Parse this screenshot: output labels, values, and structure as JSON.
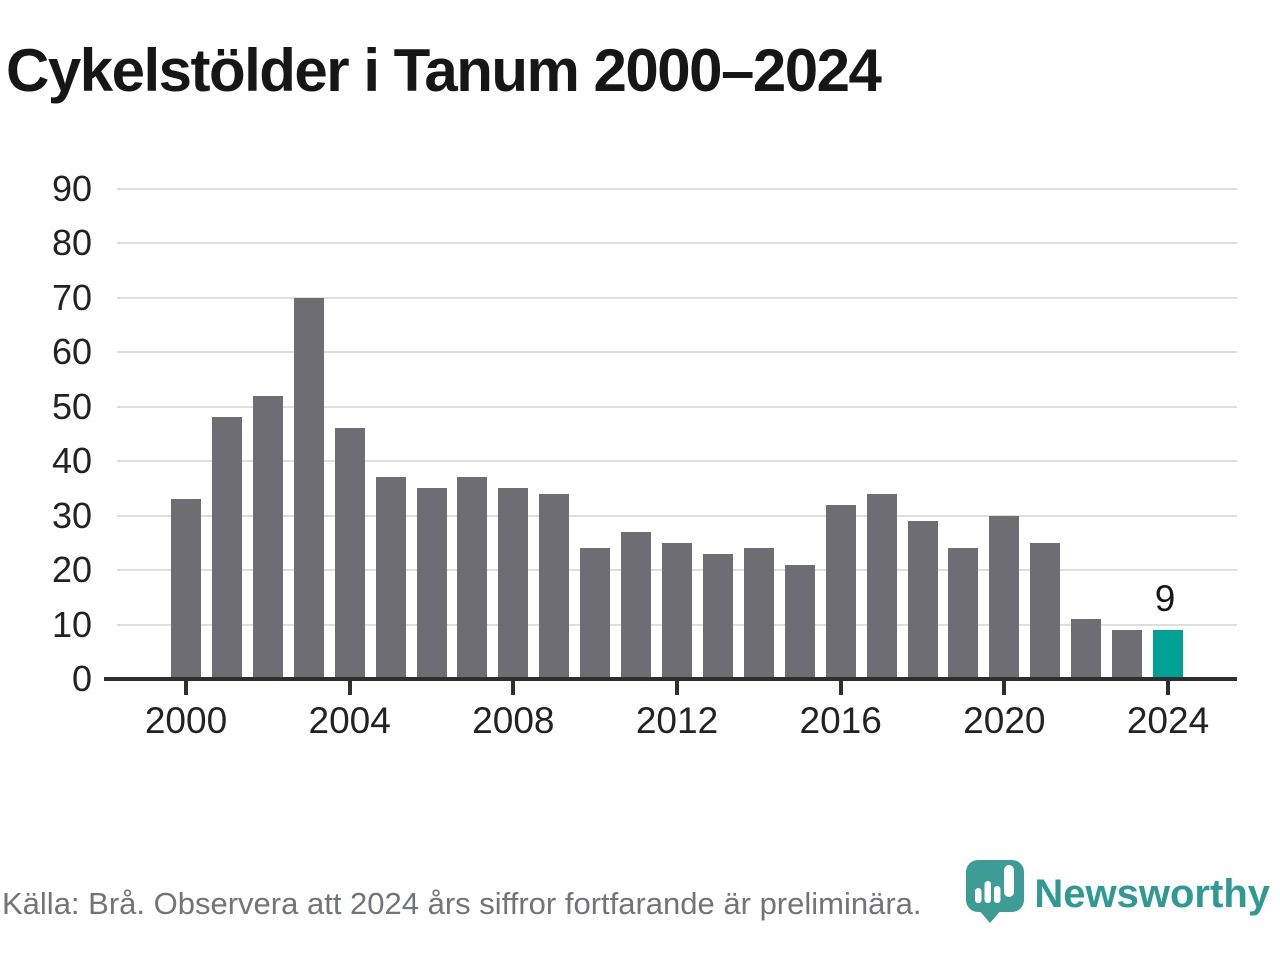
{
  "title": "Cykelstölder i Tanum 2000–2024",
  "footer": {
    "source_note": "Källa: Brå. Observera att 2024 års siffror fortfarande är preliminära.",
    "brand_name": "Newsworthy"
  },
  "icons": {
    "brand_pin": "newsworthy-pin-chart-icon"
  },
  "colors": {
    "bar": "#6d6d73",
    "highlight": "#00a094",
    "brand_teal": "#2f9a93",
    "gridline": "#dedede",
    "axis": "#2e2e2e",
    "text": "#222222",
    "muted_text": "#73737a"
  },
  "chart_data": {
    "type": "bar",
    "title": "Cykelstölder i Tanum 2000–2024",
    "xlabel": "",
    "ylabel": "",
    "categories": [
      "2000",
      "2001",
      "2002",
      "2003",
      "2004",
      "2005",
      "2006",
      "2007",
      "2008",
      "2009",
      "2010",
      "2011",
      "2012",
      "2013",
      "2014",
      "2015",
      "2016",
      "2017",
      "2018",
      "2019",
      "2020",
      "2021",
      "2022",
      "2023",
      "2024"
    ],
    "values": [
      33,
      48,
      52,
      70,
      46,
      37,
      35,
      37,
      35,
      34,
      24,
      27,
      25,
      23,
      24,
      21,
      32,
      34,
      29,
      24,
      30,
      25,
      11,
      9,
      9
    ],
    "ylim": [
      0,
      90
    ],
    "ytick_step": 10,
    "ytick_labels": [
      "0",
      "10",
      "20",
      "30",
      "40",
      "50",
      "60",
      "70",
      "80",
      "90"
    ],
    "xtick_labels": [
      "2000",
      "2004",
      "2008",
      "2012",
      "2016",
      "2020",
      "2024"
    ],
    "grid": "horizontal",
    "legend": "none",
    "highlight": {
      "category": "2024",
      "data_label": "9"
    }
  }
}
